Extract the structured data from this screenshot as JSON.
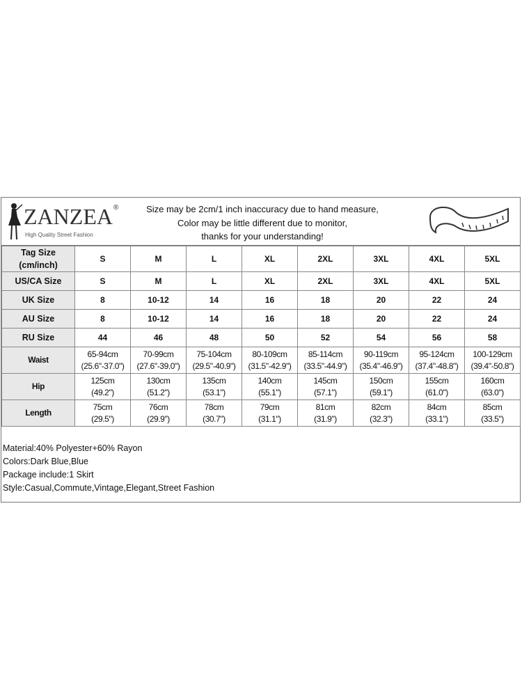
{
  "logo": {
    "brand": "ZANZEA",
    "tagline": "High Quality Street Fashion",
    "registered": "®"
  },
  "notice": [
    "Size may be 2cm/1 inch inaccuracy due to hand measure,",
    "Color may be little different due to monitor,",
    "thanks for your understanding!"
  ],
  "icons": {
    "logo": "woman-silhouette-icon",
    "tape": "measuring-tape-icon"
  },
  "table": {
    "header": {
      "label": "Tag Size\n(cm/inch)",
      "values": [
        "S",
        "M",
        "L",
        "XL",
        "2XL",
        "3XL",
        "4XL",
        "5XL"
      ]
    },
    "rows": [
      {
        "label": "US/CA Size",
        "values": [
          "S",
          "M",
          "L",
          "XL",
          "2XL",
          "3XL",
          "4XL",
          "5XL"
        ]
      },
      {
        "label": "UK Size",
        "values": [
          "8",
          "10-12",
          "14",
          "16",
          "18",
          "20",
          "22",
          "24"
        ]
      },
      {
        "label": "AU Size",
        "values": [
          "8",
          "10-12",
          "14",
          "16",
          "18",
          "20",
          "22",
          "24"
        ]
      },
      {
        "label": "RU Size",
        "values": [
          "44",
          "46",
          "48",
          "50",
          "52",
          "54",
          "56",
          "58"
        ]
      },
      {
        "label": "Waist",
        "values": [
          [
            "65-94cm",
            "(25.6\"-37.0\")"
          ],
          [
            "70-99cm",
            "(27.6\"-39.0\")"
          ],
          [
            "75-104cm",
            "(29.5\"-40.9\")"
          ],
          [
            "80-109cm",
            "(31.5\"-42.9\")"
          ],
          [
            "85-114cm",
            "(33.5\"-44.9\")"
          ],
          [
            "90-119cm",
            "(35.4\"-46.9\")"
          ],
          [
            "95-124cm",
            "(37.4\"-48.8\")"
          ],
          [
            "100-129cm",
            "(39.4\"-50.8\")"
          ]
        ]
      },
      {
        "label": "Hip",
        "values": [
          [
            "125cm",
            "(49.2\")"
          ],
          [
            "130cm",
            "(51.2\")"
          ],
          [
            "135cm",
            "(53.1\")"
          ],
          [
            "140cm",
            "(55.1\")"
          ],
          [
            "145cm",
            "(57.1\")"
          ],
          [
            "150cm",
            "(59.1\")"
          ],
          [
            "155cm",
            "(61.0\")"
          ],
          [
            "160cm",
            "(63.0\")"
          ]
        ]
      },
      {
        "label": "Length",
        "values": [
          [
            "75cm",
            "(29.5\")"
          ],
          [
            "76cm",
            "(29.9\")"
          ],
          [
            "78cm",
            "(30.7\")"
          ],
          [
            "79cm",
            "(31.1\")"
          ],
          [
            "81cm",
            "(31.9\")"
          ],
          [
            "82cm",
            "(32.3\")"
          ],
          [
            "84cm",
            "(33.1\")"
          ],
          [
            "85cm",
            "(33.5\")"
          ]
        ]
      }
    ]
  },
  "info": [
    "Material:40% Polyester+60% Rayon",
    "Colors:Dark Blue,Blue",
    "Package include:1 Skirt",
    "Style:Casual,Commute,Vintage,Elegant,Street Fashion"
  ]
}
